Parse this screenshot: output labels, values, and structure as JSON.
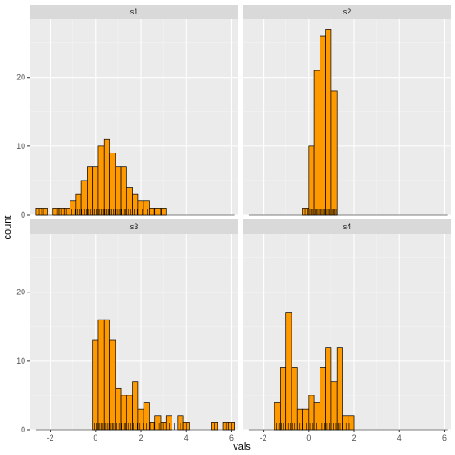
{
  "chart_data": {
    "type": "bar",
    "subtype": "faceted-histogram-with-rug",
    "xlabel": "vals",
    "ylabel": "count",
    "xlim": [
      -2.9,
      6.3
    ],
    "ylim": [
      0,
      28.5
    ],
    "x_ticks": [
      -2,
      0,
      2,
      4,
      6
    ],
    "y_ticks": [
      0,
      10,
      20
    ],
    "bin_width": 0.25,
    "bar_fill": "#FF9900",
    "bar_stroke": "#000000",
    "panel_background": "#EBEBEB",
    "strip_background": "#D9D9D9",
    "grid": true,
    "facets": [
      {
        "name": "s1",
        "bins": [
          {
            "x": -2.5,
            "count": 1
          },
          {
            "x": -2.25,
            "count": 1
          },
          {
            "x": -1.75,
            "count": 1
          },
          {
            "x": -1.5,
            "count": 1
          },
          {
            "x": -1.25,
            "count": 1
          },
          {
            "x": -1.0,
            "count": 2
          },
          {
            "x": -0.75,
            "count": 3
          },
          {
            "x": -0.5,
            "count": 5
          },
          {
            "x": -0.25,
            "count": 7
          },
          {
            "x": 0.0,
            "count": 7
          },
          {
            "x": 0.25,
            "count": 10
          },
          {
            "x": 0.5,
            "count": 11
          },
          {
            "x": 0.75,
            "count": 9
          },
          {
            "x": 1.0,
            "count": 7
          },
          {
            "x": 1.25,
            "count": 7
          },
          {
            "x": 1.5,
            "count": 4
          },
          {
            "x": 1.75,
            "count": 3
          },
          {
            "x": 2.0,
            "count": 2
          },
          {
            "x": 2.25,
            "count": 2
          },
          {
            "x": 2.5,
            "count": 1
          },
          {
            "x": 2.75,
            "count": 1
          },
          {
            "x": 3.0,
            "count": 1
          }
        ],
        "rug": [
          -2.5,
          -2.3,
          -1.7,
          -1.5,
          -1.3,
          -1.05,
          -0.9,
          -0.8,
          -0.7,
          -0.6,
          -0.5,
          -0.42,
          -0.35,
          -0.28,
          -0.2,
          -0.12,
          -0.05,
          0.02,
          0.08,
          0.14,
          0.2,
          0.27,
          0.33,
          0.4,
          0.46,
          0.52,
          0.58,
          0.64,
          0.7,
          0.78,
          0.85,
          0.92,
          1.0,
          1.08,
          1.15,
          1.25,
          1.35,
          1.45,
          1.55,
          1.7,
          1.85,
          2.05,
          2.3,
          2.6,
          2.9
        ]
      },
      {
        "name": "s2",
        "bins": [
          {
            "x": -0.125,
            "count": 1
          },
          {
            "x": 0.125,
            "count": 10
          },
          {
            "x": 0.375,
            "count": 21
          },
          {
            "x": 0.625,
            "count": 26
          },
          {
            "x": 0.875,
            "count": 27
          },
          {
            "x": 1.125,
            "count": 18
          }
        ],
        "rug": [
          -0.15,
          -0.05,
          0.0,
          0.05,
          0.1,
          0.15,
          0.2,
          0.25,
          0.3,
          0.35,
          0.4,
          0.45,
          0.5,
          0.55,
          0.6,
          0.65,
          0.7,
          0.75,
          0.8,
          0.85,
          0.9,
          0.95,
          1.0,
          1.05,
          1.1,
          1.15,
          1.2,
          1.25
        ]
      },
      {
        "name": "s3",
        "bins": [
          {
            "x": 0.0,
            "count": 13
          },
          {
            "x": 0.25,
            "count": 16
          },
          {
            "x": 0.5,
            "count": 16
          },
          {
            "x": 0.75,
            "count": 13
          },
          {
            "x": 1.0,
            "count": 6
          },
          {
            "x": 1.25,
            "count": 5
          },
          {
            "x": 1.5,
            "count": 5
          },
          {
            "x": 1.75,
            "count": 7
          },
          {
            "x": 2.0,
            "count": 3
          },
          {
            "x": 2.25,
            "count": 4
          },
          {
            "x": 2.5,
            "count": 1
          },
          {
            "x": 2.75,
            "count": 2
          },
          {
            "x": 3.0,
            "count": 1
          },
          {
            "x": 3.25,
            "count": 2
          },
          {
            "x": 3.75,
            "count": 2
          },
          {
            "x": 4.0,
            "count": 1
          },
          {
            "x": 5.25,
            "count": 1
          },
          {
            "x": 5.75,
            "count": 1
          },
          {
            "x": 6.0,
            "count": 1
          }
        ],
        "rug": [
          -0.05,
          0.02,
          0.08,
          0.14,
          0.2,
          0.26,
          0.32,
          0.38,
          0.44,
          0.5,
          0.56,
          0.62,
          0.68,
          0.74,
          0.8,
          0.88,
          0.95,
          1.05,
          1.15,
          1.25,
          1.35,
          1.45,
          1.55,
          1.65,
          1.75,
          1.85,
          1.95,
          2.1,
          2.25,
          2.4,
          2.6,
          2.8,
          3.0,
          3.25,
          3.5,
          3.75,
          4.0,
          5.25,
          5.75,
          6.0
        ]
      },
      {
        "name": "s4",
        "bins": [
          {
            "x": -1.375,
            "count": 4
          },
          {
            "x": -1.125,
            "count": 9
          },
          {
            "x": -0.875,
            "count": 17
          },
          {
            "x": -0.625,
            "count": 9
          },
          {
            "x": -0.375,
            "count": 3
          },
          {
            "x": -0.125,
            "count": 3
          },
          {
            "x": 0.125,
            "count": 5
          },
          {
            "x": 0.375,
            "count": 4
          },
          {
            "x": 0.625,
            "count": 9
          },
          {
            "x": 0.875,
            "count": 12
          },
          {
            "x": 1.125,
            "count": 7
          },
          {
            "x": 1.375,
            "count": 12
          },
          {
            "x": 1.625,
            "count": 2
          },
          {
            "x": 1.875,
            "count": 2
          }
        ],
        "rug": [
          -1.5,
          -1.4,
          -1.3,
          -1.2,
          -1.1,
          -1.0,
          -0.9,
          -0.8,
          -0.7,
          -0.6,
          -0.5,
          -0.4,
          -0.25,
          -0.1,
          0.05,
          0.2,
          0.35,
          0.5,
          0.6,
          0.7,
          0.8,
          0.9,
          1.0,
          1.1,
          1.2,
          1.3,
          1.4,
          1.5,
          1.65,
          1.8
        ]
      }
    ]
  }
}
